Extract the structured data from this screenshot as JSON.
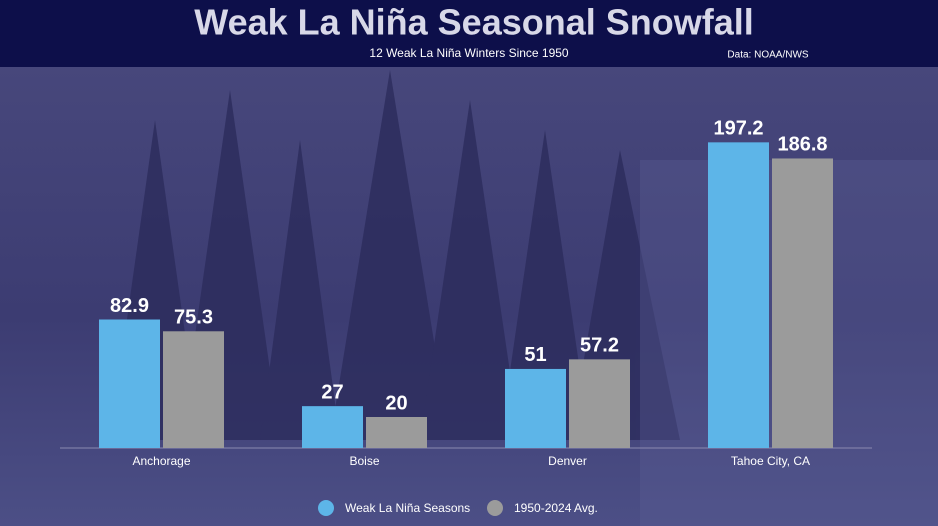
{
  "chart_data": {
    "type": "bar",
    "title": "Weak La Niña Seasonal Snowfall",
    "subtitle": "12 Weak La Niña Winters Since 1950",
    "source": "Data: NOAA/NWS",
    "categories": [
      "Anchorage",
      "Boise",
      "Denver",
      "Tahoe City, CA"
    ],
    "series": [
      {
        "name": "Weak La Niña Seasons",
        "color": "#5db5e8",
        "values": [
          82.9,
          27,
          51,
          197.2
        ]
      },
      {
        "name": "1950-2024 Avg.",
        "color": "#9b9b9b",
        "values": [
          75.3,
          20,
          57.2,
          186.8
        ]
      }
    ],
    "ylim": [
      0,
      200
    ]
  }
}
